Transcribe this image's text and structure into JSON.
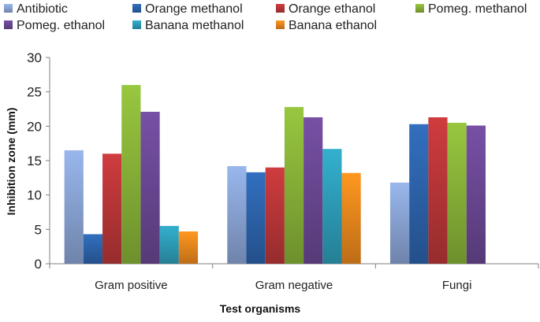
{
  "chart_data": {
    "type": "bar",
    "title": "",
    "xlabel": "Test organisms",
    "ylabel": "Inhibition zone (mm)",
    "ylim": [
      0,
      30
    ],
    "yticks": [
      0,
      5,
      10,
      15,
      20,
      25,
      30
    ],
    "grid": false,
    "legend_position": "top",
    "categories": [
      "Gram positive",
      "Gram negative",
      "Fungi"
    ],
    "series": [
      {
        "name": "Antibiotic",
        "color": "#8EA9DB",
        "values": [
          16.5,
          14.2,
          11.8
        ]
      },
      {
        "name": "Orange methanol",
        "color": "#2E67B1",
        "values": [
          4.3,
          13.3,
          20.3
        ]
      },
      {
        "name": "Orange ethanol",
        "color": "#C0383A",
        "values": [
          16.0,
          14.0,
          21.3
        ]
      },
      {
        "name": "Pomeg. methanol",
        "color": "#8DB83A",
        "values": [
          26.0,
          22.8,
          20.5
        ]
      },
      {
        "name": "Pomeg. ethanol",
        "color": "#6E4A99",
        "values": [
          22.1,
          21.3,
          20.1
        ]
      },
      {
        "name": "Banana methanol",
        "color": "#2FA3BF",
        "values": [
          5.5,
          16.7,
          null
        ]
      },
      {
        "name": "Banana ethanol",
        "color": "#F28C1E",
        "values": [
          4.7,
          13.2,
          null
        ]
      }
    ]
  }
}
